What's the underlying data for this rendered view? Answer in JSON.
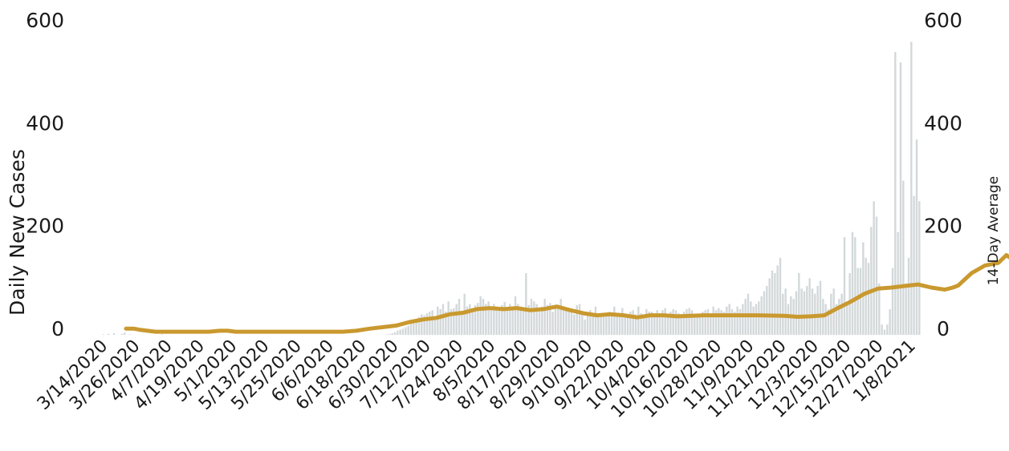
{
  "chart_data": {
    "type": "bar+line",
    "title": "",
    "ylabel_left": "Daily New Cases",
    "ylabel_right": "14-Day Average",
    "ylim": [
      0,
      600
    ],
    "yticks": [
      "0",
      "200",
      "400",
      "600"
    ],
    "right_yticks": [
      "0",
      "200",
      "400",
      "600"
    ],
    "x_start": "3/14/2020",
    "x_end": "1/12/2021",
    "xtick_labels": [
      "3/14/2020",
      "3/26/2020",
      "4/7/2020",
      "4/19/2020",
      "5/1/2020",
      "5/13/2020",
      "5/25/2020",
      "6/6/2020",
      "6/18/2020",
      "6/30/2020",
      "7/12/2020",
      "7/24/2020",
      "8/5/2020",
      "8/17/2020",
      "8/29/2020",
      "9/10/2020",
      "9/22/2020",
      "10/4/2020",
      "10/16/2020",
      "10/28/2020",
      "11/9/2020",
      "11/21/2020",
      "12/3/2020",
      "12/15/2020",
      "12/27/2020",
      "1/8/2021"
    ],
    "grid": false,
    "colors": {
      "bars": "#d3d8da",
      "line": "#c9992f"
    },
    "series": [
      {
        "name": "Daily New Cases",
        "kind": "bar",
        "values": [
          1,
          0,
          2,
          0,
          3,
          0,
          0,
          2,
          4,
          0,
          1,
          0,
          0,
          0,
          0,
          0,
          0,
          0,
          0,
          0,
          0,
          0,
          1,
          0,
          0,
          0,
          0,
          0,
          0,
          0,
          0,
          0,
          0,
          0,
          0,
          0,
          0,
          0,
          0,
          0,
          0,
          0,
          0,
          0,
          0,
          0,
          0,
          0,
          0,
          0,
          0,
          0,
          0,
          0,
          0,
          0,
          0,
          0,
          0,
          0,
          0,
          0,
          0,
          0,
          0,
          0,
          0,
          0,
          0,
          0,
          0,
          0,
          0,
          0,
          0,
          0,
          0,
          0,
          0,
          0,
          0,
          0,
          0,
          0,
          0,
          0,
          0,
          0,
          0,
          0,
          0,
          0,
          0,
          0,
          0,
          0,
          0,
          0,
          0,
          0,
          0,
          0,
          0,
          0,
          0,
          0,
          1,
          2,
          3,
          5,
          8,
          10,
          12,
          15,
          18,
          22,
          30,
          25,
          35,
          40,
          38,
          42,
          45,
          48,
          30,
          55,
          50,
          60,
          45,
          65,
          50,
          52,
          60,
          70,
          45,
          80,
          55,
          60,
          45,
          58,
          62,
          75,
          70,
          60,
          65,
          48,
          60,
          55,
          50,
          58,
          64,
          52,
          60,
          48,
          75,
          60,
          55,
          50,
          120,
          58,
          70,
          65,
          60,
          45,
          55,
          70,
          58,
          62,
          45,
          55,
          50,
          70,
          55,
          50,
          45,
          48,
          40,
          58,
          60,
          40,
          30,
          38,
          48,
          40,
          55,
          35,
          38,
          40,
          40,
          45,
          40,
          55,
          42,
          38,
          52,
          40,
          38,
          45,
          48,
          40,
          55,
          42,
          38,
          50,
          45,
          45,
          35,
          48,
          42,
          48,
          52,
          38,
          45,
          50,
          48,
          42,
          40,
          45,
          50,
          52,
          48,
          40,
          38,
          35,
          45,
          48,
          50,
          42,
          55,
          48,
          52,
          48,
          45,
          55,
          60,
          50,
          45,
          55,
          50,
          60,
          70,
          80,
          65,
          55,
          60,
          65,
          75,
          85,
          95,
          110,
          125,
          120,
          135,
          150,
          80,
          90,
          60,
          75,
          70,
          85,
          120,
          90,
          85,
          95,
          110,
          90,
          80,
          95,
          105,
          70,
          60,
          50,
          80,
          90,
          60,
          70,
          80,
          190,
          60,
          120,
          200,
          190,
          130,
          130,
          180,
          150,
          140,
          210,
          260,
          230,
          100,
          20,
          10,
          20,
          50,
          130,
          550,
          200,
          530,
          300,
          100,
          150,
          570,
          270,
          380,
          260
        ]
      },
      {
        "name": "14-Day Average",
        "kind": "line",
        "points": [
          [
            9,
            12
          ],
          [
            12,
            12
          ],
          [
            14,
            10
          ],
          [
            20,
            6
          ],
          [
            30,
            6
          ],
          [
            40,
            6
          ],
          [
            44,
            8
          ],
          [
            47,
            8
          ],
          [
            50,
            6
          ],
          [
            60,
            6
          ],
          [
            70,
            6
          ],
          [
            80,
            6
          ],
          [
            90,
            6
          ],
          [
            95,
            8
          ],
          [
            100,
            12
          ],
          [
            105,
            15
          ],
          [
            110,
            18
          ],
          [
            115,
            25
          ],
          [
            120,
            30
          ],
          [
            125,
            33
          ],
          [
            130,
            40
          ],
          [
            135,
            43
          ],
          [
            140,
            50
          ],
          [
            145,
            52
          ],
          [
            150,
            50
          ],
          [
            155,
            52
          ],
          [
            160,
            48
          ],
          [
            165,
            50
          ],
          [
            170,
            55
          ],
          [
            175,
            48
          ],
          [
            180,
            42
          ],
          [
            185,
            38
          ],
          [
            190,
            40
          ],
          [
            195,
            38
          ],
          [
            200,
            34
          ],
          [
            205,
            38
          ],
          [
            210,
            38
          ],
          [
            215,
            36
          ],
          [
            225,
            38
          ],
          [
            235,
            38
          ],
          [
            245,
            38
          ],
          [
            255,
            37
          ],
          [
            260,
            35
          ],
          [
            265,
            36
          ],
          [
            270,
            38
          ],
          [
            275,
            52
          ],
          [
            280,
            65
          ],
          [
            285,
            80
          ],
          [
            290,
            90
          ],
          [
            295,
            92
          ],
          [
            300,
            95
          ],
          [
            305,
            98
          ],
          [
            310,
            92
          ],
          [
            315,
            88
          ],
          [
            318,
            92
          ],
          [
            320,
            96
          ],
          [
            325,
            120
          ],
          [
            330,
            135
          ],
          [
            335,
            140
          ],
          [
            338,
            155
          ],
          [
            340,
            148
          ],
          [
            343,
            130
          ],
          [
            345,
            128
          ],
          [
            350,
            175
          ],
          [
            353,
            170
          ],
          [
            355,
            195
          ],
          [
            360,
            215
          ]
        ]
      }
    ]
  }
}
